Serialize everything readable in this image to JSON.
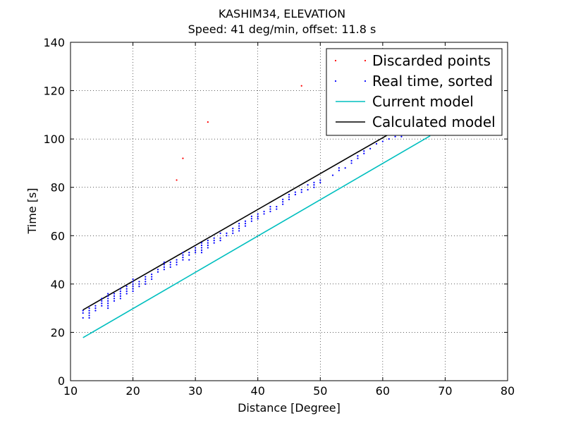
{
  "chart_data": {
    "type": "scatter",
    "title": "KASHIM34, ELEVATION",
    "subtitle": "Speed: 41 deg/min, offset: 11.8 s",
    "xlabel": "Distance [Degree]",
    "ylabel": "Time [s]",
    "xlim": [
      10,
      80
    ],
    "ylim": [
      0,
      140
    ],
    "xticks": [
      10,
      20,
      30,
      40,
      50,
      60,
      70,
      80
    ],
    "yticks": [
      0,
      20,
      40,
      60,
      80,
      100,
      120,
      140
    ],
    "xtick_labels": [
      "10",
      "20",
      "30",
      "40",
      "50",
      "60",
      "70",
      "80"
    ],
    "ytick_labels": [
      "0",
      "20",
      "40",
      "60",
      "80",
      "100",
      "120",
      "140"
    ],
    "grid": true,
    "legend_position": "top-right",
    "colors": {
      "discarded": "#ff0000",
      "real": "#0000ff",
      "current": "#00bfbf",
      "calculated": "#000000"
    },
    "series": [
      {
        "name": "Discarded points",
        "kind": "points",
        "x": [
          27,
          28,
          32,
          47
        ],
        "y": [
          83,
          92,
          107,
          122
        ]
      },
      {
        "name": "Real time, sorted",
        "kind": "points",
        "x": [
          12,
          12,
          12,
          13,
          13,
          13,
          13,
          13,
          14,
          14,
          14,
          15,
          15,
          15,
          15,
          16,
          16,
          16,
          16,
          16,
          16,
          16,
          17,
          17,
          17,
          17,
          18,
          18,
          18,
          18,
          18,
          19,
          19,
          19,
          19,
          20,
          20,
          20,
          20,
          20,
          20,
          21,
          21,
          21,
          22,
          22,
          22,
          22,
          23,
          23,
          23,
          24,
          24,
          25,
          25,
          25,
          25,
          26,
          26,
          26,
          27,
          27,
          27,
          28,
          28,
          28,
          28,
          29,
          29,
          29,
          30,
          30,
          30,
          31,
          31,
          31,
          31,
          31,
          32,
          32,
          32,
          32,
          33,
          33,
          33,
          34,
          34,
          34,
          35,
          35,
          36,
          36,
          36,
          37,
          37,
          37,
          37,
          38,
          38,
          38,
          39,
          39,
          39,
          40,
          40,
          40,
          41,
          41,
          42,
          42,
          42,
          43,
          43,
          44,
          44,
          44,
          45,
          45,
          45,
          46,
          46,
          47,
          47,
          48,
          48,
          49,
          49,
          49,
          50,
          50,
          52,
          53,
          53,
          54,
          55,
          55,
          56,
          56,
          57,
          57,
          58,
          59,
          60,
          61,
          62,
          63
        ],
        "y": [
          26,
          28,
          29,
          26,
          27,
          28,
          29,
          30,
          29,
          30,
          31,
          31,
          32,
          33,
          34,
          30,
          31,
          32,
          33,
          34,
          35,
          36,
          33,
          34,
          35,
          36,
          34,
          35,
          36,
          37,
          38,
          36,
          37,
          38,
          39,
          37,
          38,
          39,
          40,
          41,
          42,
          39,
          40,
          41,
          40,
          41,
          42,
          43,
          42,
          43,
          44,
          45,
          46,
          46,
          47,
          48,
          49,
          47,
          48,
          49,
          48,
          49,
          50,
          50,
          51,
          52,
          53,
          50,
          52,
          53,
          53,
          54,
          55,
          53,
          54,
          55,
          56,
          57,
          55,
          56,
          57,
          58,
          57,
          58,
          59,
          58,
          59,
          61,
          60,
          61,
          61,
          62,
          63,
          62,
          63,
          64,
          65,
          64,
          65,
          66,
          66,
          67,
          68,
          67,
          68,
          69,
          69,
          70,
          70,
          71,
          72,
          71,
          72,
          73,
          74,
          75,
          75,
          76,
          77,
          77,
          78,
          78,
          79,
          79,
          81,
          80,
          81,
          82,
          82,
          83,
          85,
          87,
          88,
          88,
          90,
          91,
          92,
          93,
          94,
          95,
          96,
          98,
          99,
          100,
          101,
          101
        ]
      },
      {
        "name": "Current model",
        "kind": "line",
        "x": [
          12,
          67.6
        ],
        "y": [
          17.8,
          101.3
        ]
      },
      {
        "name": "Calculated model",
        "kind": "line",
        "x": [
          12,
          61
        ],
        "y": [
          29.3,
          102
        ]
      }
    ]
  }
}
